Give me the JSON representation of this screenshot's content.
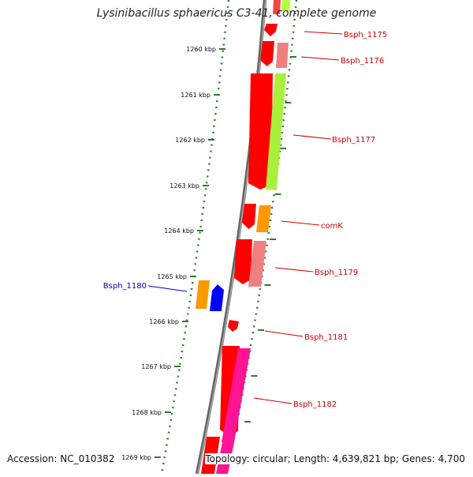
{
  "title": "Lysinibacillus sphaericus C3-41, complete genome",
  "footer": {
    "accession": "Accession: NC_010382",
    "summary": "Topology: circular; Length: 4,639,821 bp; Genes: 4,700"
  },
  "colors": {
    "backbone": "#808080",
    "tick": "#2e7d32",
    "label_red": "#cc0000",
    "label_blue": "#0000cc"
  },
  "ticks": [
    "1260 kbp",
    "1261 kbp",
    "1262 kbp",
    "1263 kbp",
    "1264 kbp",
    "1265 kbp",
    "1266 kbp",
    "1267 kbp",
    "1268 kbp",
    "1269 kbp"
  ],
  "gene_labels": [
    {
      "text": "Bsph_1175",
      "color": "#cc0000"
    },
    {
      "text": "Bsph_1176",
      "color": "#cc0000"
    },
    {
      "text": "Bsph_1177",
      "color": "#cc0000"
    },
    {
      "text": "comK",
      "color": "#cc0000"
    },
    {
      "text": "Bsph_1179",
      "color": "#cc0000"
    },
    {
      "text": "Bsph_1180",
      "color": "#0000cc"
    },
    {
      "text": "Bsph_1181",
      "color": "#cc0000"
    },
    {
      "text": "Bsph_1182",
      "color": "#cc0000"
    }
  ]
}
